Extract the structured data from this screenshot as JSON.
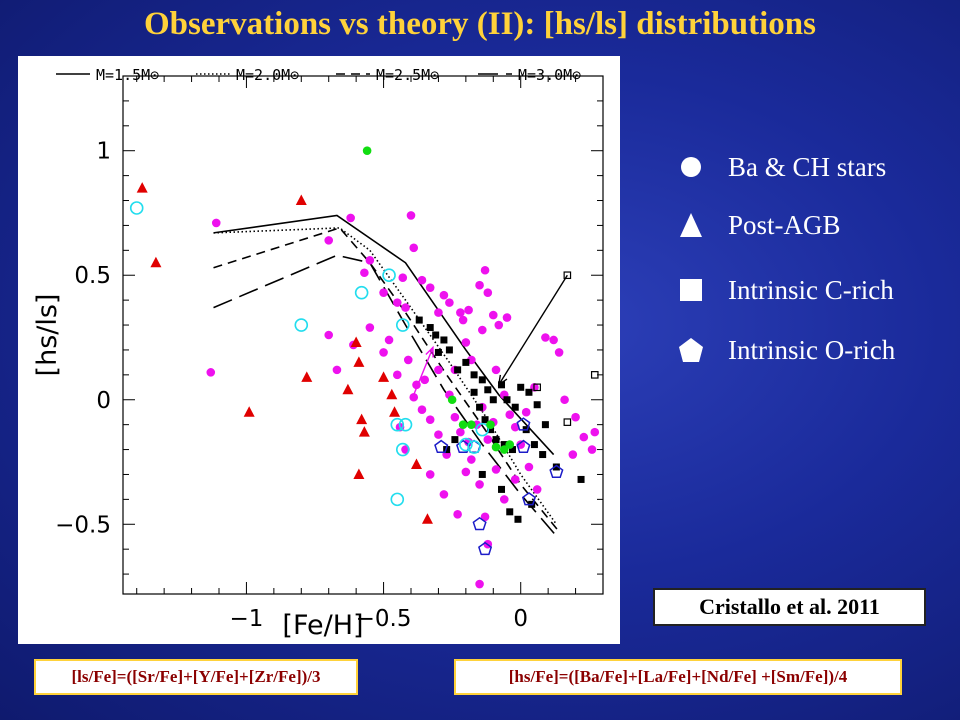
{
  "slide": {
    "title": "Observations vs theory (II): [hs/ls] distributions",
    "citation": "Cristallo et al. 2011",
    "ls_formula": "[ls/Fe]=([Sr/Fe]+[Y/Fe]+[Zr/Fe])/3",
    "hs_formula": "[hs/Fe]=([Ba/Fe]+[La/Fe]+[Nd/Fe]  +[Sm/Fe])/4"
  },
  "side_legend": [
    {
      "label": "Ba & CH stars",
      "symbol": "circle"
    },
    {
      "label": "Post-AGB",
      "symbol": "triangle"
    },
    {
      "label": "Intrinsic C-rich",
      "symbol": "square"
    },
    {
      "label": "Intrinsic O-rich",
      "symbol": "pentagon"
    }
  ],
  "colors": {
    "title": "#ffd23a",
    "ba_ch_stars": "#ee11ee",
    "post_agb": "#e00000",
    "c_rich": "#000000",
    "o_rich": "#1c1cc8",
    "cyan_circles": "#22ddee",
    "green_points": "#11dd11"
  },
  "chart_data": {
    "type": "scatter",
    "xlabel": "[Fe/H]",
    "ylabel": "[hs/ls]",
    "xlim": [
      -1.45,
      0.3
    ],
    "ylim": [
      -0.78,
      1.3
    ],
    "x_ticks": [
      -1,
      -0.5,
      0
    ],
    "x_tick_labels": [
      "−1",
      "−0.5",
      "0"
    ],
    "y_ticks": [
      -0.5,
      0,
      0.5,
      1
    ],
    "y_tick_labels": [
      "−0.5",
      "0",
      "0.5",
      "1"
    ],
    "legend": {
      "placement": "top",
      "entries": [
        "M=1.5M⊙",
        "M=2.0M⊙",
        "M=2.5M⊙",
        "M=3.0M⊙"
      ]
    },
    "curves": [
      {
        "name": "M=1.5M⊙",
        "dash": "solid",
        "x": [
          -1.12,
          -0.67,
          -0.42,
          -0.2,
          -0.08,
          0.12
        ],
        "y": [
          0.67,
          0.74,
          0.55,
          0.2,
          0.02,
          -0.22
        ]
      },
      {
        "name": "M=2.0M⊙",
        "dash": "dotted",
        "x": [
          -1.12,
          -0.66,
          -0.55,
          -0.42,
          -0.26,
          -0.12,
          0.0,
          0.13
        ],
        "y": [
          0.67,
          0.69,
          0.6,
          0.4,
          0.15,
          -0.08,
          -0.3,
          -0.5
        ]
      },
      {
        "name": "M=2.5M⊙",
        "dash": "short-dash",
        "x": [
          -1.12,
          -0.66,
          -0.55,
          -0.42,
          -0.27,
          -0.13,
          0.0,
          0.14
        ],
        "y": [
          0.53,
          0.69,
          0.55,
          0.35,
          0.1,
          -0.12,
          -0.34,
          -0.53
        ]
      },
      {
        "name": "M=3.0M⊙",
        "dash": "long-dash",
        "x": [
          -1.12,
          -0.67,
          -0.55,
          -0.42,
          -0.28,
          -0.14,
          0.0,
          0.14
        ],
        "y": [
          0.37,
          0.58,
          0.55,
          0.3,
          0.04,
          -0.18,
          -0.38,
          -0.56
        ]
      }
    ],
    "arrows": [
      {
        "color": "black",
        "x1": 0.17,
        "y1": 0.5,
        "x2": -0.08,
        "y2": 0.06
      },
      {
        "color": "magenta",
        "x1": -0.39,
        "y1": 0.02,
        "x2": -0.32,
        "y2": 0.21
      }
    ],
    "series": [
      {
        "name": "Ba & CH stars",
        "marker": "circle-filled",
        "color": "magenta",
        "points": [
          [
            -1.11,
            0.71
          ],
          [
            -1.13,
            0.11
          ],
          [
            -0.62,
            0.73
          ],
          [
            -0.7,
            0.64
          ],
          [
            -0.55,
            0.56
          ],
          [
            -0.57,
            0.51
          ],
          [
            -0.5,
            0.43
          ],
          [
            -0.45,
            0.39
          ],
          [
            -0.42,
            0.37
          ],
          [
            -0.43,
            0.49
          ],
          [
            -0.4,
            0.74
          ],
          [
            -0.39,
            0.61
          ],
          [
            -0.36,
            0.48
          ],
          [
            -0.33,
            0.45
          ],
          [
            -0.3,
            0.35
          ],
          [
            -0.28,
            0.42
          ],
          [
            -0.26,
            0.39
          ],
          [
            -0.22,
            0.35
          ],
          [
            -0.19,
            0.36
          ],
          [
            -0.15,
            0.46
          ],
          [
            -0.13,
            0.52
          ],
          [
            -0.12,
            0.43
          ],
          [
            -0.21,
            0.32
          ],
          [
            -0.14,
            0.28
          ],
          [
            -0.1,
            0.34
          ],
          [
            -0.08,
            0.3
          ],
          [
            -0.05,
            0.33
          ],
          [
            -0.2,
            0.23
          ],
          [
            -0.18,
            0.16
          ],
          [
            -0.24,
            0.12
          ],
          [
            -0.3,
            0.12
          ],
          [
            -0.35,
            0.08
          ],
          [
            -0.38,
            0.06
          ],
          [
            -0.41,
            0.16
          ],
          [
            -0.48,
            0.24
          ],
          [
            -0.55,
            0.29
          ],
          [
            -0.61,
            0.22
          ],
          [
            -0.7,
            0.26
          ],
          [
            -0.67,
            0.12
          ],
          [
            -0.5,
            0.19
          ],
          [
            -0.45,
            0.1
          ],
          [
            -0.39,
            0.01
          ],
          [
            -0.36,
            -0.04
          ],
          [
            -0.33,
            -0.08
          ],
          [
            -0.3,
            -0.14
          ],
          [
            -0.26,
            0.02
          ],
          [
            -0.24,
            -0.07
          ],
          [
            -0.22,
            -0.13
          ],
          [
            -0.19,
            -0.17
          ],
          [
            -0.16,
            -0.1
          ],
          [
            -0.14,
            -0.03
          ],
          [
            -0.12,
            -0.16
          ],
          [
            -0.1,
            -0.09
          ],
          [
            -0.09,
            0.12
          ],
          [
            -0.06,
            0.02
          ],
          [
            -0.04,
            -0.06
          ],
          [
            -0.02,
            -0.11
          ],
          [
            0.0,
            -0.18
          ],
          [
            0.02,
            -0.05
          ],
          [
            0.05,
            0.05
          ],
          [
            0.09,
            0.25
          ],
          [
            0.12,
            0.24
          ],
          [
            0.14,
            0.19
          ],
          [
            0.16,
            0.0
          ],
          [
            0.2,
            -0.07
          ],
          [
            0.23,
            -0.15
          ],
          [
            0.26,
            -0.2
          ],
          [
            0.27,
            -0.13
          ],
          [
            0.19,
            -0.22
          ],
          [
            -0.44,
            -0.11
          ],
          [
            -0.42,
            -0.2
          ],
          [
            -0.33,
            -0.3
          ],
          [
            -0.28,
            -0.38
          ],
          [
            -0.2,
            -0.29
          ],
          [
            -0.15,
            -0.34
          ],
          [
            -0.13,
            -0.47
          ],
          [
            -0.12,
            -0.58
          ],
          [
            -0.15,
            -0.74
          ],
          [
            -0.06,
            -0.4
          ],
          [
            -0.02,
            -0.32
          ],
          [
            0.03,
            -0.27
          ],
          [
            0.06,
            -0.36
          ],
          [
            -0.18,
            -0.24
          ],
          [
            -0.09,
            -0.28
          ],
          [
            -0.27,
            -0.22
          ],
          [
            -0.23,
            -0.46
          ]
        ]
      },
      {
        "name": "Post-AGB",
        "marker": "triangle-filled",
        "color": "red",
        "points": [
          [
            -1.38,
            0.85
          ],
          [
            -1.33,
            0.55
          ],
          [
            -0.99,
            -0.05
          ],
          [
            -0.8,
            0.8
          ],
          [
            -0.78,
            0.09
          ],
          [
            -0.6,
            0.23
          ],
          [
            -0.59,
            0.15
          ],
          [
            -0.58,
            -0.08
          ],
          [
            -0.57,
            -0.13
          ],
          [
            -0.5,
            0.09
          ],
          [
            -0.47,
            0.02
          ],
          [
            -0.46,
            -0.05
          ],
          [
            -0.38,
            -0.26
          ],
          [
            -0.59,
            -0.3
          ],
          [
            -0.63,
            0.04
          ],
          [
            -0.34,
            -0.48
          ]
        ]
      },
      {
        "name": "Intrinsic C-rich",
        "marker": "square-filled",
        "color": "black",
        "points": [
          [
            -0.37,
            0.32
          ],
          [
            -0.33,
            0.29
          ],
          [
            -0.31,
            0.26
          ],
          [
            -0.28,
            0.24
          ],
          [
            -0.3,
            0.19
          ],
          [
            -0.26,
            0.2
          ],
          [
            -0.23,
            0.12
          ],
          [
            -0.2,
            0.15
          ],
          [
            -0.17,
            0.1
          ],
          [
            -0.14,
            0.08
          ],
          [
            -0.12,
            0.04
          ],
          [
            -0.1,
            0.0
          ],
          [
            -0.07,
            0.06
          ],
          [
            -0.05,
            0.0
          ],
          [
            -0.02,
            -0.03
          ],
          [
            0.0,
            0.05
          ],
          [
            0.03,
            0.03
          ],
          [
            0.06,
            -0.02
          ],
          [
            0.09,
            -0.1
          ],
          [
            -0.17,
            0.03
          ],
          [
            -0.15,
            -0.03
          ],
          [
            -0.13,
            -0.08
          ],
          [
            -0.11,
            -0.12
          ],
          [
            -0.09,
            -0.16
          ],
          [
            -0.06,
            -0.18
          ],
          [
            -0.03,
            -0.2
          ],
          [
            0.02,
            -0.12
          ],
          [
            0.05,
            -0.18
          ],
          [
            0.08,
            -0.22
          ],
          [
            0.13,
            -0.27
          ],
          [
            -0.27,
            -0.2
          ],
          [
            -0.24,
            -0.16
          ],
          [
            -0.14,
            -0.3
          ],
          [
            -0.07,
            -0.36
          ],
          [
            -0.04,
            -0.45
          ],
          [
            -0.01,
            -0.48
          ],
          [
            0.04,
            -0.42
          ],
          [
            0.22,
            -0.32
          ]
        ]
      },
      {
        "name": "Intrinsic C-rich (open)",
        "marker": "square-open",
        "color": "black",
        "points": [
          [
            0.17,
            0.5
          ],
          [
            0.27,
            0.1
          ],
          [
            0.17,
            -0.09
          ],
          [
            0.06,
            0.05
          ]
        ]
      },
      {
        "name": "Intrinsic O-rich",
        "marker": "pentagon-open",
        "color": "blue",
        "points": [
          [
            -0.29,
            -0.19
          ],
          [
            -0.21,
            -0.19
          ],
          [
            -0.17,
            -0.19
          ],
          [
            0.01,
            -0.1
          ],
          [
            0.01,
            -0.19
          ],
          [
            -0.15,
            -0.5
          ],
          [
            -0.13,
            -0.6
          ],
          [
            0.03,
            -0.4
          ],
          [
            0.13,
            -0.29
          ]
        ]
      },
      {
        "name": "cyan open circles",
        "marker": "circle-open",
        "color": "cyan",
        "points": [
          [
            -1.4,
            0.77
          ],
          [
            -0.8,
            0.3
          ],
          [
            -0.58,
            0.43
          ],
          [
            -0.48,
            0.5
          ],
          [
            -0.43,
            0.3
          ],
          [
            -0.43,
            -0.2
          ],
          [
            -0.45,
            -0.4
          ],
          [
            -0.42,
            -0.1
          ],
          [
            -0.45,
            -0.1
          ],
          [
            -0.2,
            -0.18
          ],
          [
            -0.17,
            -0.19
          ],
          [
            -0.14,
            -0.12
          ]
        ]
      },
      {
        "name": "green filled circles",
        "marker": "circle-filled",
        "color": "green",
        "points": [
          [
            -0.56,
            1.0
          ],
          [
            -0.25,
            0.0
          ],
          [
            -0.21,
            -0.1
          ],
          [
            -0.18,
            -0.1
          ],
          [
            -0.11,
            -0.1
          ],
          [
            -0.09,
            -0.19
          ],
          [
            -0.06,
            -0.2
          ],
          [
            -0.04,
            -0.18
          ]
        ]
      }
    ]
  }
}
